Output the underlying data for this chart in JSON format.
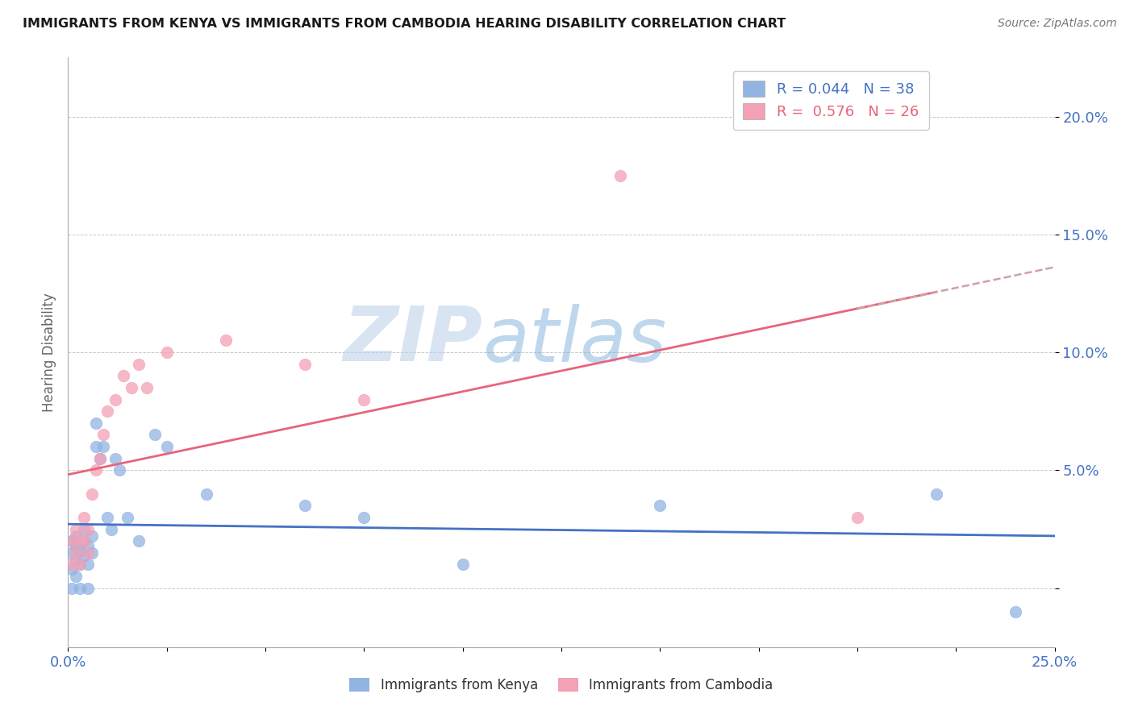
{
  "title": "IMMIGRANTS FROM KENYA VS IMMIGRANTS FROM CAMBODIA HEARING DISABILITY CORRELATION CHART",
  "source": "Source: ZipAtlas.com",
  "ylabel_label": "Hearing Disability",
  "xlim": [
    0.0,
    0.25
  ],
  "ylim": [
    -0.025,
    0.225
  ],
  "ytick_positions": [
    0.0,
    0.05,
    0.1,
    0.15,
    0.2
  ],
  "ytick_labels": [
    "",
    "5.0%",
    "10.0%",
    "15.0%",
    "20.0%"
  ],
  "xtick_positions": [
    0.0,
    0.025,
    0.05,
    0.075,
    0.1,
    0.125,
    0.15,
    0.175,
    0.2,
    0.225,
    0.25
  ],
  "xtick_labels": [
    "0.0%",
    "",
    "",
    "",
    "",
    "",
    "",
    "",
    "",
    "",
    "25.0%"
  ],
  "kenya_color": "#92b4e3",
  "cambodia_color": "#f4a0b5",
  "kenya_line_color": "#4472c4",
  "cambodia_line_color": "#e8647a",
  "dashed_line_color": "#d0a0a8",
  "legend_kenya_R": "0.044",
  "legend_kenya_N": "38",
  "legend_cambodia_R": "0.576",
  "legend_cambodia_N": "26",
  "background_color": "#ffffff",
  "watermark_zip": "ZIP",
  "watermark_atlas": "atlas",
  "kenya_x": [
    0.001,
    0.001,
    0.001,
    0.001,
    0.002,
    0.002,
    0.002,
    0.002,
    0.003,
    0.003,
    0.003,
    0.004,
    0.004,
    0.004,
    0.005,
    0.005,
    0.005,
    0.006,
    0.006,
    0.007,
    0.007,
    0.008,
    0.009,
    0.01,
    0.011,
    0.012,
    0.013,
    0.015,
    0.018,
    0.022,
    0.025,
    0.035,
    0.06,
    0.075,
    0.1,
    0.15,
    0.22,
    0.24
  ],
  "kenya_y": [
    0.015,
    0.02,
    0.008,
    0.0,
    0.022,
    0.018,
    0.012,
    0.005,
    0.01,
    0.016,
    0.0,
    0.014,
    0.02,
    0.025,
    0.018,
    0.01,
    0.0,
    0.015,
    0.022,
    0.06,
    0.07,
    0.055,
    0.06,
    0.03,
    0.025,
    0.055,
    0.05,
    0.03,
    0.02,
    0.065,
    0.06,
    0.04,
    0.035,
    0.03,
    0.01,
    0.035,
    0.04,
    -0.01
  ],
  "cambodia_x": [
    0.001,
    0.001,
    0.002,
    0.002,
    0.003,
    0.003,
    0.004,
    0.004,
    0.005,
    0.005,
    0.006,
    0.007,
    0.008,
    0.009,
    0.01,
    0.012,
    0.014,
    0.016,
    0.018,
    0.02,
    0.025,
    0.04,
    0.06,
    0.075,
    0.14,
    0.2
  ],
  "cambodia_y": [
    0.01,
    0.02,
    0.015,
    0.025,
    0.02,
    0.01,
    0.03,
    0.02,
    0.025,
    0.015,
    0.04,
    0.05,
    0.055,
    0.065,
    0.075,
    0.08,
    0.09,
    0.085,
    0.095,
    0.085,
    0.1,
    0.105,
    0.095,
    0.08,
    0.175,
    0.03
  ]
}
